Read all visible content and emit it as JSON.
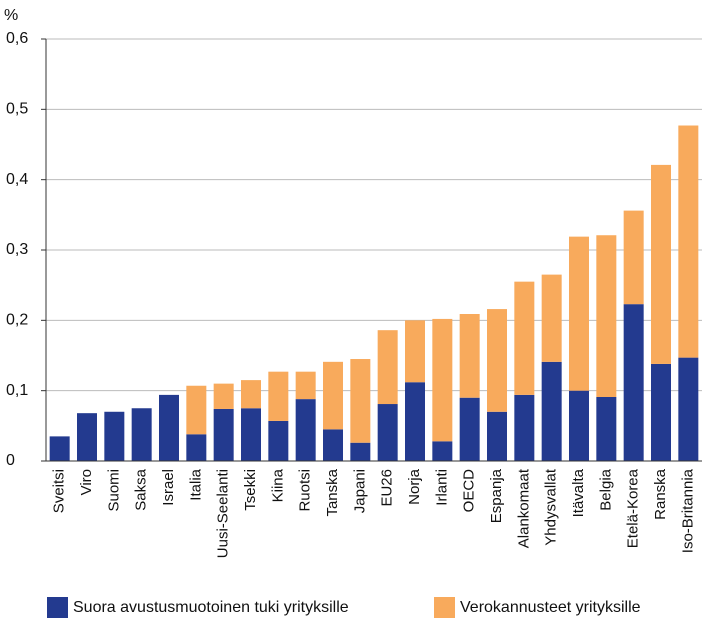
{
  "chart_data": {
    "type": "stacked-bar",
    "unit_label": "%",
    "categories": [
      "Sveitsi",
      "Viro",
      "Suomi",
      "Saksa",
      "Israel",
      "Italia",
      "Uusi-Seelanti",
      "Tsekki",
      "Kiina",
      "Ruotsi",
      "Tanska",
      "Japani",
      "EU26",
      "Norja",
      "Irlanti",
      "OECD",
      "Espanja",
      "Alankomaat",
      "Yhdysvallat",
      "Itävalta",
      "Belgia",
      "Etelä-Korea",
      "Ranska",
      "Iso-Britannia"
    ],
    "series": [
      {
        "name": "Suora avustusmuotoinen tuki yrityksille",
        "color": "#233a8f",
        "values": [
          0.035,
          0.068,
          0.07,
          0.075,
          0.094,
          0.038,
          0.074,
          0.075,
          0.057,
          0.088,
          0.045,
          0.026,
          0.081,
          0.112,
          0.028,
          0.09,
          0.07,
          0.094,
          0.141,
          0.1,
          0.091,
          0.223,
          0.138,
          0.147
        ]
      },
      {
        "name": "Verokannusteet yrityksille",
        "color": "#f8aa5c",
        "values": [
          0,
          0,
          0,
          0,
          0,
          0.069,
          0.036,
          0.04,
          0.07,
          0.039,
          0.096,
          0.119,
          0.105,
          0.088,
          0.174,
          0.119,
          0.146,
          0.161,
          0.124,
          0.219,
          0.23,
          0.133,
          0.283,
          0.33
        ]
      }
    ],
    "ylim": [
      0,
      0.6
    ],
    "yticks": [
      0,
      {
        "value": 0.1,
        "label": "0,1"
      },
      {
        "value": 0.2,
        "label": "0,2"
      },
      {
        "value": 0.3,
        "label": "0,3"
      },
      {
        "value": 0.4,
        "label": "0,4"
      },
      {
        "value": 0.5,
        "label": "0,5"
      },
      {
        "value": 0.6,
        "label": "0,6"
      }
    ],
    "grid": true,
    "legend": "bottom"
  }
}
